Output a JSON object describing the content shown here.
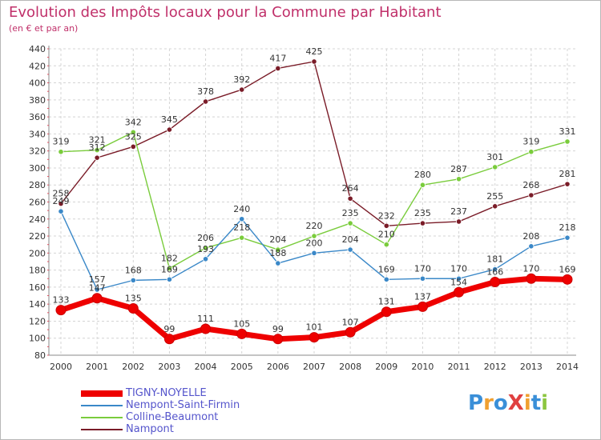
{
  "header": {
    "title": "Evolution des Impôts locaux pour la Commune par Habitant",
    "subtitle": "(en € et par an)"
  },
  "logo": {
    "text": "ProXiti",
    "letters": [
      "P",
      "r",
      "o",
      "X",
      "i",
      "t",
      "i"
    ],
    "colors": [
      "#3a8fd8",
      "#f0a030",
      "#3a8fd8",
      "#e04040",
      "#f0a030",
      "#3a8fd8",
      "#8cc640"
    ]
  },
  "chart_data": {
    "type": "line",
    "x": [
      2000,
      2001,
      2002,
      2003,
      2004,
      2005,
      2006,
      2007,
      2008,
      2009,
      2010,
      2011,
      2012,
      2013,
      2014
    ],
    "ylim": [
      80,
      440
    ],
    "yticks": [
      80,
      100,
      120,
      140,
      160,
      180,
      200,
      220,
      240,
      260,
      280,
      300,
      320,
      340,
      360,
      380,
      400,
      420,
      440
    ],
    "grid": true,
    "legend_position": "bottom-left",
    "series": [
      {
        "name": "TIGNY-NOYELLE",
        "color": "#ee0000",
        "emphasis": true,
        "values": [
          133,
          147,
          135,
          99,
          111,
          105,
          99,
          101,
          107,
          131,
          137,
          154,
          166,
          170,
          169
        ],
        "labels": [
          "133",
          "147",
          "135",
          "99",
          "111",
          "105",
          "99",
          "101",
          "107",
          "131",
          "137",
          "154",
          "166",
          "170",
          "169"
        ]
      },
      {
        "name": "Nempont-Saint-Firmin",
        "color": "#3a88c8",
        "values": [
          249,
          157,
          168,
          169,
          193,
          240,
          188,
          200,
          204,
          169,
          170,
          170,
          181,
          208,
          218
        ],
        "labels": [
          "249",
          "157",
          "168",
          "169",
          "193",
          "240",
          "188",
          "200",
          "204",
          "169",
          "170",
          "170",
          "181",
          "208",
          "218"
        ]
      },
      {
        "name": "Colline-Beaumont",
        "color": "#7acc3c",
        "values": [
          319,
          321,
          342,
          182,
          206,
          218,
          204,
          220,
          235,
          210,
          280,
          287,
          301,
          319,
          331
        ],
        "labels": [
          "319",
          "321",
          "342",
          "182",
          "206",
          "218",
          "204",
          "220",
          "235",
          "210",
          "280",
          "287",
          "301",
          "319",
          "331"
        ]
      },
      {
        "name": "Nampont",
        "color": "#7a1c28",
        "values": [
          258,
          312,
          325,
          345,
          378,
          392,
          417,
          425,
          264,
          232,
          235,
          237,
          255,
          268,
          281
        ],
        "labels": [
          "258",
          "312",
          "325",
          "345",
          "378",
          "392",
          "417",
          "425",
          "264",
          "232",
          "235",
          "237",
          "255",
          "268",
          "281"
        ]
      }
    ]
  }
}
